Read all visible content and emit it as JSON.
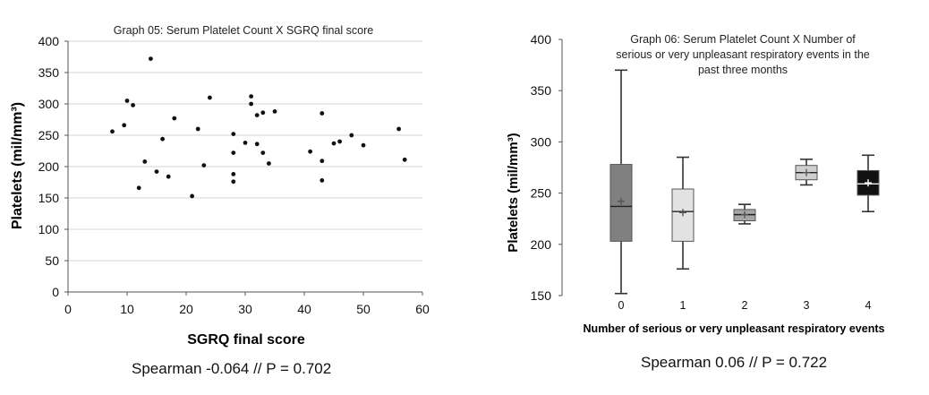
{
  "chart_data": [
    {
      "type": "scatter",
      "title": "Graph 05: Serum Platelet Count X SGRQ final score",
      "xlabel": "SGRQ final score",
      "ylabel": "Platelets (mil/mm³)",
      "xlim": [
        0,
        60
      ],
      "ylim": [
        0,
        400
      ],
      "xticks": [
        0,
        10,
        20,
        30,
        40,
        50,
        60
      ],
      "yticks": [
        0,
        50,
        100,
        150,
        200,
        250,
        300,
        350,
        400
      ],
      "grid": true,
      "points": [
        {
          "x": 7.5,
          "y": 256
        },
        {
          "x": 9.5,
          "y": 266
        },
        {
          "x": 10,
          "y": 305
        },
        {
          "x": 11,
          "y": 298
        },
        {
          "x": 12,
          "y": 166
        },
        {
          "x": 13,
          "y": 208
        },
        {
          "x": 14,
          "y": 372
        },
        {
          "x": 15,
          "y": 192
        },
        {
          "x": 16,
          "y": 244
        },
        {
          "x": 17,
          "y": 184
        },
        {
          "x": 18,
          "y": 277
        },
        {
          "x": 21,
          "y": 153
        },
        {
          "x": 22,
          "y": 260
        },
        {
          "x": 23,
          "y": 202
        },
        {
          "x": 24,
          "y": 310
        },
        {
          "x": 28,
          "y": 252
        },
        {
          "x": 28,
          "y": 222
        },
        {
          "x": 28,
          "y": 188
        },
        {
          "x": 28,
          "y": 176
        },
        {
          "x": 30,
          "y": 238
        },
        {
          "x": 31,
          "y": 312
        },
        {
          "x": 31,
          "y": 300
        },
        {
          "x": 32,
          "y": 282
        },
        {
          "x": 32,
          "y": 236
        },
        {
          "x": 33,
          "y": 286
        },
        {
          "x": 33,
          "y": 222
        },
        {
          "x": 34,
          "y": 205
        },
        {
          "x": 35,
          "y": 288
        },
        {
          "x": 41,
          "y": 224
        },
        {
          "x": 43,
          "y": 285
        },
        {
          "x": 43,
          "y": 209
        },
        {
          "x": 43,
          "y": 178
        },
        {
          "x": 45,
          "y": 237
        },
        {
          "x": 46,
          "y": 240
        },
        {
          "x": 48,
          "y": 250
        },
        {
          "x": 50,
          "y": 234
        },
        {
          "x": 56,
          "y": 260
        },
        {
          "x": 57,
          "y": 211
        }
      ]
    },
    {
      "type": "box",
      "title_lines": [
        "Graph 06: Serum Platelet Count X Number of",
        "serious or very unpleasant respiratory events in the",
        "past three months"
      ],
      "xlabel": "Number of serious or very unpleasant respiratory events",
      "ylabel": "Platelets (mil/mm³)",
      "ylim": [
        150,
        400
      ],
      "yticks": [
        150,
        200,
        250,
        300,
        350,
        400
      ],
      "categories": [
        "0",
        "1",
        "2",
        "3",
        "4"
      ],
      "boxes": [
        {
          "category": "0",
          "min": 152,
          "q1": 203,
          "median": 237,
          "mean": 242,
          "q3": 278,
          "max": 370,
          "fill": "#808080"
        },
        {
          "category": "1",
          "min": 176,
          "q1": 203,
          "median": 232,
          "mean": 231,
          "q3": 254,
          "max": 285,
          "fill": "#e2e2e2"
        },
        {
          "category": "2",
          "min": 220,
          "q1": 223,
          "median": 229,
          "mean": 229,
          "q3": 234,
          "max": 239,
          "fill": "#a6a6a6"
        },
        {
          "category": "3",
          "min": 258,
          "q1": 263,
          "median": 270,
          "mean": 270,
          "q3": 277,
          "max": 283,
          "fill": "#cfcfcf"
        },
        {
          "category": "4",
          "min": 232,
          "q1": 248,
          "median": 259,
          "mean": 260,
          "q3": 272,
          "max": 287,
          "fill": "#111111"
        }
      ]
    }
  ],
  "captions": {
    "left": "Spearman -0.064 // P = 0.702",
    "right": "Spearman 0.06 //  P = 0.722"
  }
}
